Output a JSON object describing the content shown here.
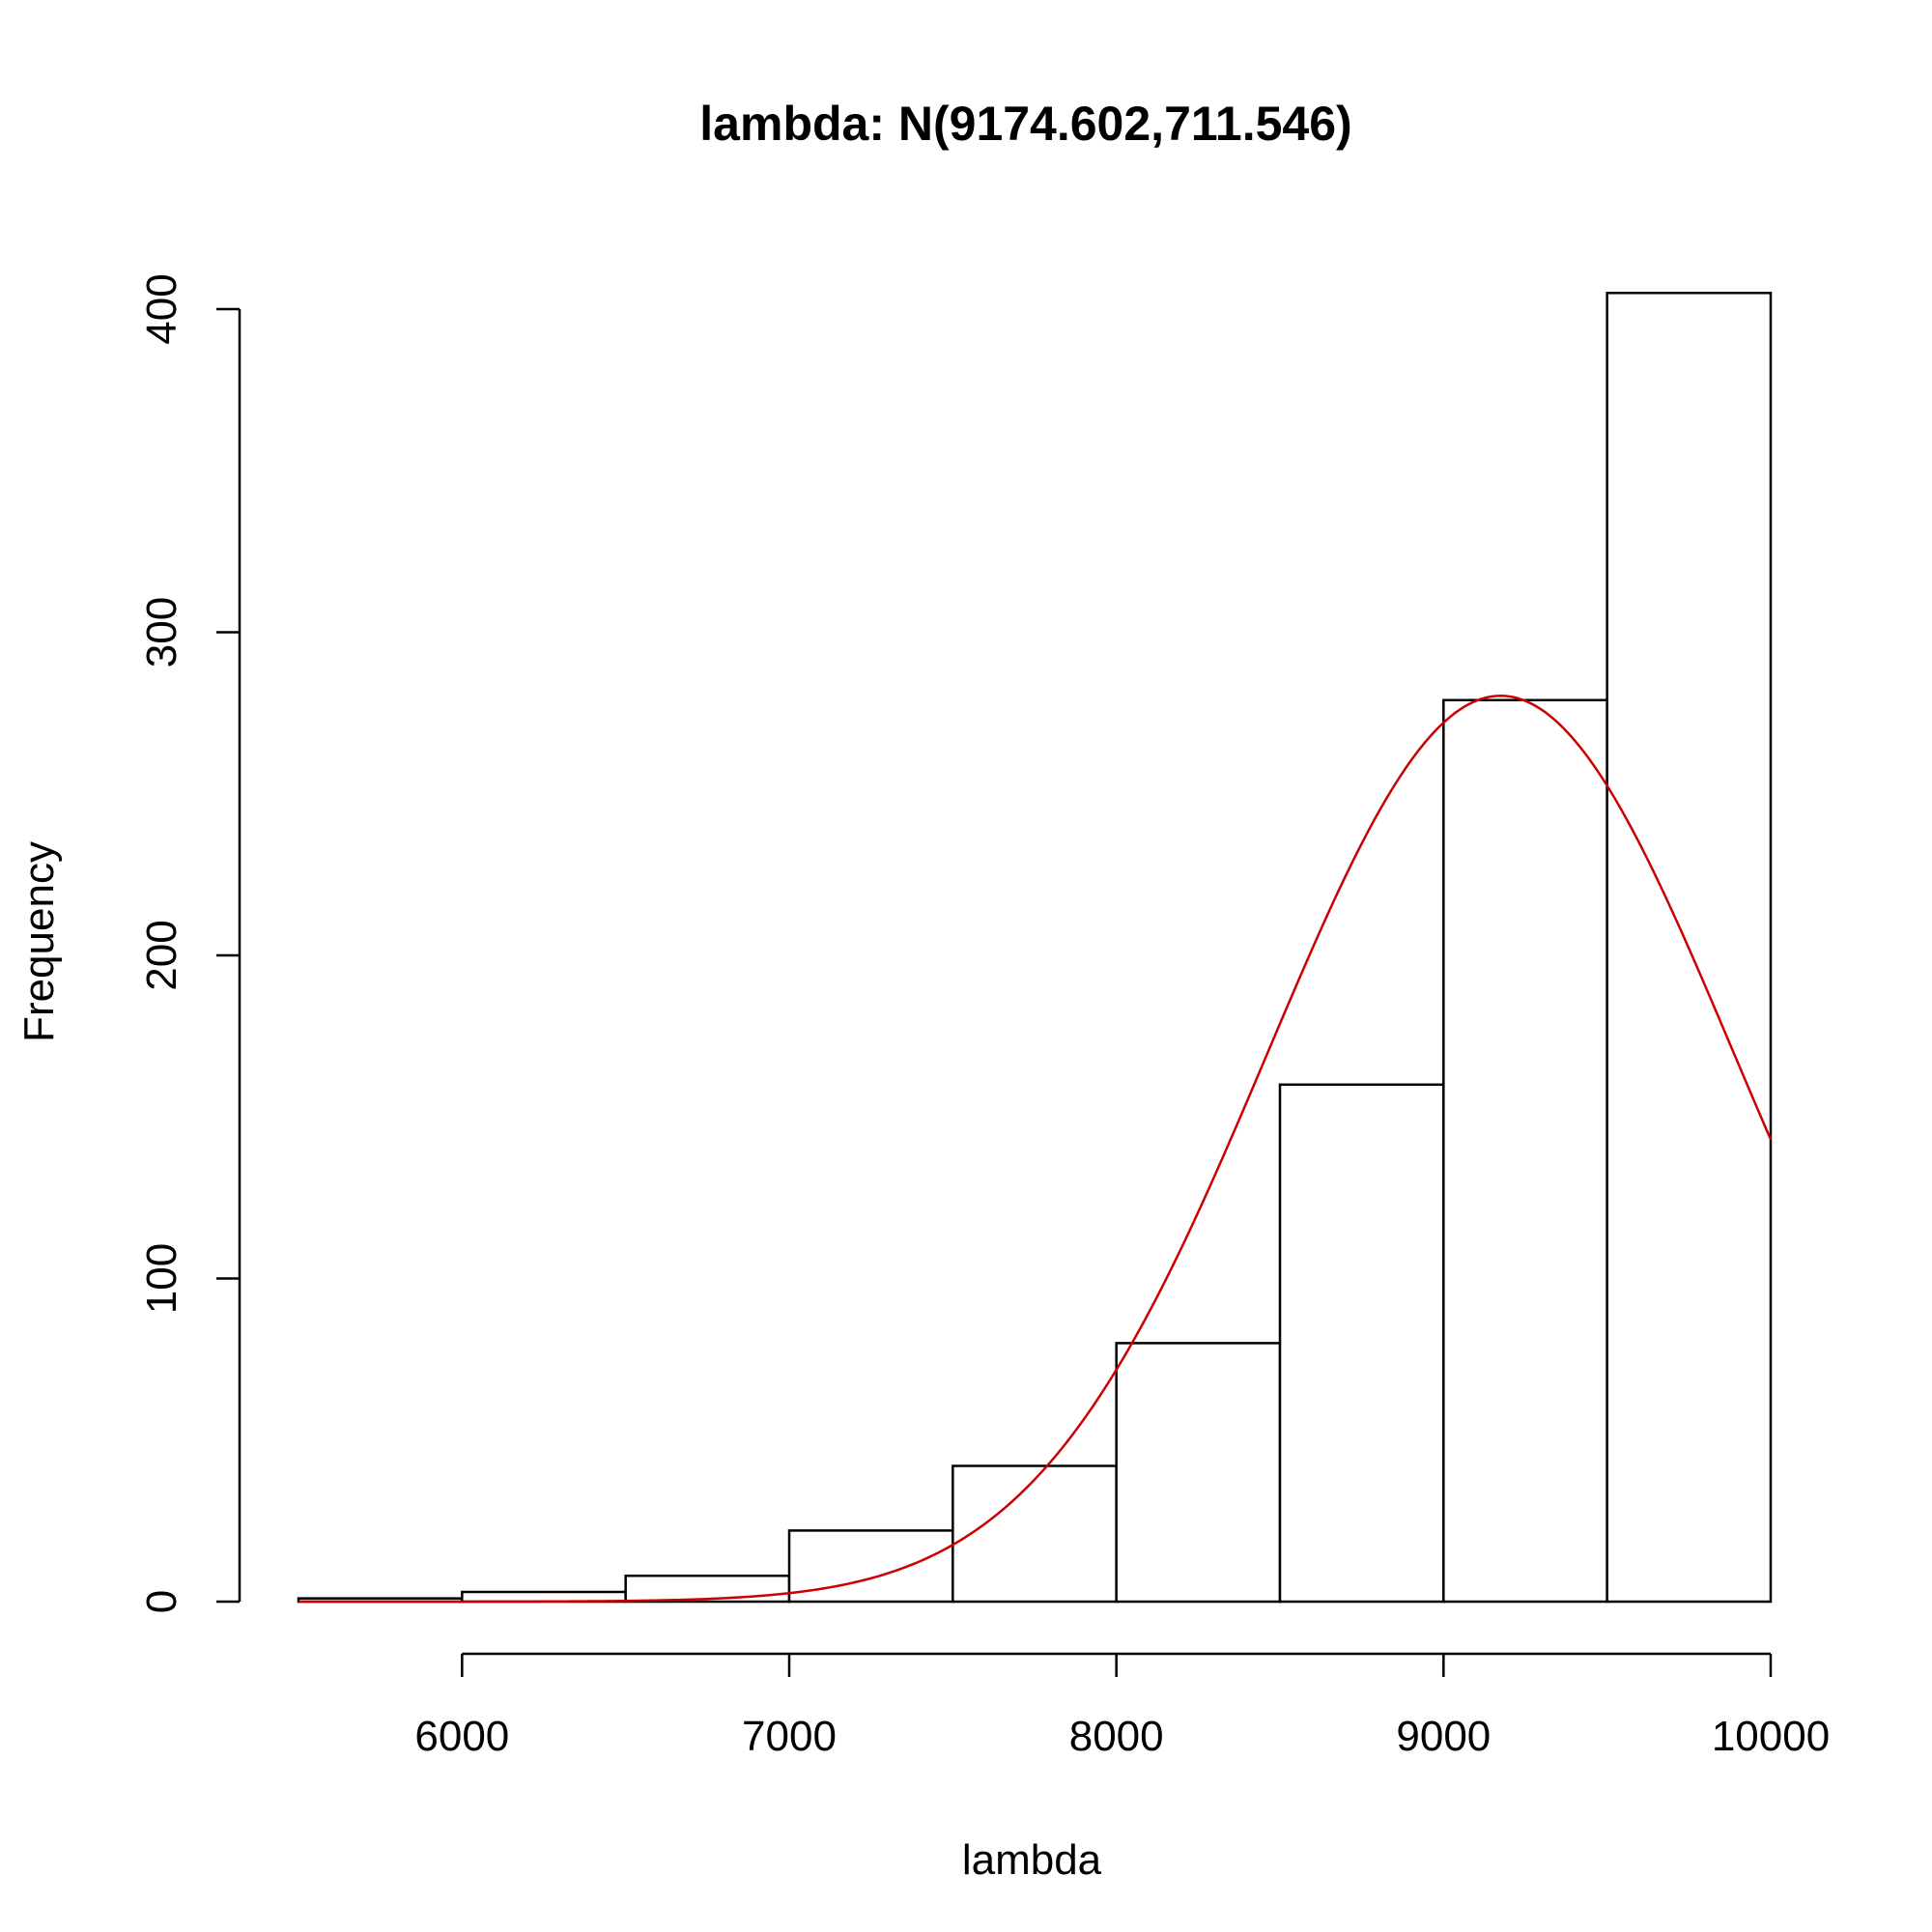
{
  "chart_data": {
    "type": "bar",
    "title": "lambda: N(9174.602,711.546)",
    "xlabel": "lambda",
    "ylabel": "Frequency",
    "xlim": [
      5500,
      10000
    ],
    "ylim": [
      0,
      400
    ],
    "x_ticks": [
      6000,
      7000,
      8000,
      9000,
      10000
    ],
    "y_ticks": [
      0,
      100,
      200,
      300,
      400
    ],
    "bin_edges": [
      5500,
      6000,
      6500,
      7000,
      7500,
      8000,
      8500,
      9000,
      9500,
      10000
    ],
    "values": [
      1,
      3,
      8,
      22,
      42,
      80,
      160,
      279,
      405
    ],
    "overlay": {
      "type": "normal-density",
      "mean": 9174.602,
      "sd": 711.546,
      "color": "#cc0000"
    },
    "bar_fill": "#ffffff",
    "bar_stroke": "#000000",
    "grid": false
  }
}
